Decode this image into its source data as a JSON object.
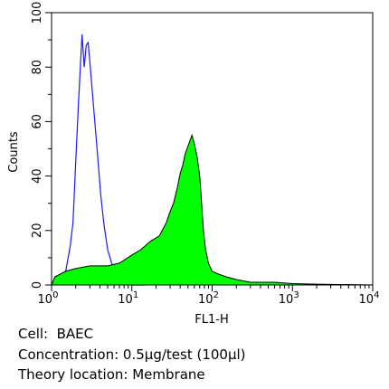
{
  "chart_data": {
    "type": "area",
    "xlabel": "FL1-H",
    "ylabel": "Counts",
    "xscale": "log",
    "xlim": [
      1,
      10000
    ],
    "ylim": [
      0,
      100
    ],
    "x_tick_labels": [
      {
        "base": "10",
        "exp": "0"
      },
      {
        "base": "10",
        "exp": "1"
      },
      {
        "base": "10",
        "exp": "2"
      },
      {
        "base": "10",
        "exp": "3"
      },
      {
        "base": "10",
        "exp": "4"
      }
    ],
    "x_tick_values": [
      1,
      10,
      100,
      1000,
      10000
    ],
    "y_ticks": [
      0,
      20,
      40,
      60,
      80,
      100
    ],
    "y_tick_labels": [
      "0",
      "20",
      "40",
      "60",
      "80",
      "100"
    ],
    "grid": false,
    "series": [
      {
        "style": "outline",
        "color": "#1a1aff",
        "points": [
          [
            1,
            0
          ],
          [
            1.3,
            1
          ],
          [
            1.5,
            5
          ],
          [
            1.7,
            14
          ],
          [
            1.85,
            23
          ],
          [
            2.0,
            45
          ],
          [
            2.15,
            65
          ],
          [
            2.3,
            82
          ],
          [
            2.4,
            92
          ],
          [
            2.55,
            80
          ],
          [
            2.7,
            88
          ],
          [
            2.85,
            89
          ],
          [
            3.0,
            82
          ],
          [
            3.2,
            72
          ],
          [
            3.5,
            58
          ],
          [
            3.8,
            45
          ],
          [
            4.1,
            33
          ],
          [
            4.5,
            22
          ],
          [
            5.0,
            13
          ],
          [
            5.6,
            8
          ],
          [
            6.3,
            4
          ],
          [
            7,
            2
          ],
          [
            8,
            1
          ],
          [
            10,
            0
          ],
          [
            15,
            0
          ]
        ]
      },
      {
        "style": "filled",
        "color": "#00ff00",
        "points": [
          [
            1,
            0
          ],
          [
            1.1,
            3
          ],
          [
            1.5,
            5
          ],
          [
            2,
            6
          ],
          [
            3,
            7
          ],
          [
            4,
            7
          ],
          [
            5,
            7
          ],
          [
            7,
            8
          ],
          [
            10,
            11
          ],
          [
            13,
            13
          ],
          [
            17,
            16
          ],
          [
            22,
            18
          ],
          [
            27,
            23
          ],
          [
            30,
            27
          ],
          [
            33,
            30
          ],
          [
            37,
            36
          ],
          [
            40,
            41
          ],
          [
            43,
            44
          ],
          [
            46,
            48
          ],
          [
            50,
            51
          ],
          [
            53,
            53
          ],
          [
            56,
            55
          ],
          [
            60,
            52
          ],
          [
            65,
            47
          ],
          [
            70,
            40
          ],
          [
            74,
            30
          ],
          [
            78,
            20
          ],
          [
            83,
            13
          ],
          [
            90,
            8
          ],
          [
            100,
            5
          ],
          [
            120,
            4
          ],
          [
            150,
            3
          ],
          [
            200,
            2
          ],
          [
            300,
            1
          ],
          [
            600,
            1
          ],
          [
            1000,
            0.5
          ],
          [
            2000,
            0.3
          ],
          [
            10000,
            0
          ]
        ]
      }
    ]
  },
  "captions": {
    "cell": "Cell:  BAEC",
    "concentration": "Concentration: 0.5μg/test (100μl)",
    "location": "Theory location: Membrane"
  }
}
